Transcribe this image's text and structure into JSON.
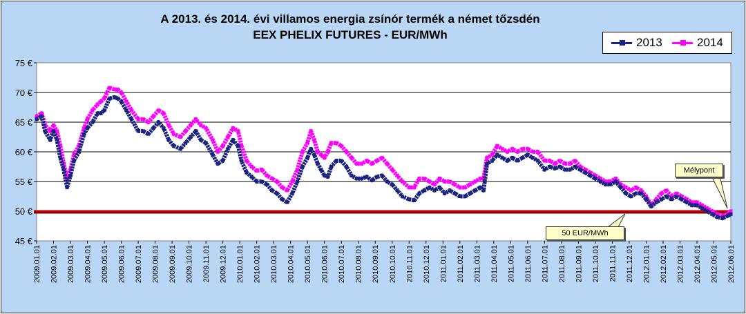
{
  "title_line1": "A 2013. és 2014. évi villamos energia zsínór termék a német tőzsdén",
  "title_line2": "EEX PHELIX FUTURES  - EUR/MWh",
  "colors": {
    "background": "#b9d7f5",
    "plot": "#ffffff",
    "s2013": "#1a237e",
    "s2014": "#ff00ff",
    "threshold": "#c00000"
  },
  "annotations": {
    "low_point": "Mélypont",
    "threshold": "50 EUR/MWh"
  },
  "chart_data": {
    "type": "line",
    "ylim": [
      45,
      75
    ],
    "yticks": [
      {
        "value": 45,
        "label": "45 €"
      },
      {
        "value": 50,
        "label": "50 €"
      },
      {
        "value": 55,
        "label": "55 €"
      },
      {
        "value": 60,
        "label": "60 €"
      },
      {
        "value": 65,
        "label": "65 €"
      },
      {
        "value": 70,
        "label": "70 €"
      },
      {
        "value": 75,
        "label": "75 €"
      }
    ],
    "x_labels": [
      "2009.01.01",
      "2009.02.01",
      "2009.03.01",
      "2009.04.01",
      "2009.05.01",
      "2009.06.01",
      "2009.07.01",
      "2009.08.01",
      "2009.09.01",
      "2009.10.01",
      "2009.11.01",
      "2009.12.01",
      "2010.01.01",
      "2010.02.01",
      "2010.03.01",
      "2010.04.01",
      "2010.05.01",
      "2010.06.01",
      "2010.07.01",
      "2010.08.01",
      "2010.09.01",
      "2010.10.01",
      "2010.11.01",
      "2010.12.01",
      "2011.01.01",
      "2011.02.01",
      "2011.03.01",
      "2011.04.01",
      "2011.05.01",
      "2011.06.01",
      "2011.07.01",
      "2011.08.01",
      "2011.09.01",
      "2011.10.01",
      "2011.11.01",
      "2011.12.01",
      "2012.01.01",
      "2012.02.01",
      "2012.03.01",
      "2012.04.01",
      "2012.05.01",
      "2012.06.01"
    ],
    "threshold": 50,
    "grid": true,
    "legend": "top-right",
    "series": [
      {
        "name": "2013",
        "color": "#1a237e",
        "points": [
          [
            0,
            65.5
          ],
          [
            0.3,
            66
          ],
          [
            0.5,
            63.5
          ],
          [
            0.8,
            62
          ],
          [
            1.0,
            63.5
          ],
          [
            1.2,
            62
          ],
          [
            1.4,
            59
          ],
          [
            1.6,
            57
          ],
          [
            1.8,
            54
          ],
          [
            2.0,
            56
          ],
          [
            2.2,
            58.5
          ],
          [
            2.5,
            60
          ],
          [
            2.8,
            63
          ],
          [
            3.0,
            64
          ],
          [
            3.3,
            65
          ],
          [
            3.6,
            66.5
          ],
          [
            3.8,
            66.5
          ],
          [
            4.0,
            67
          ],
          [
            4.3,
            69
          ],
          [
            4.6,
            69.2
          ],
          [
            4.8,
            69
          ],
          [
            5.0,
            68.5
          ],
          [
            5.3,
            67
          ],
          [
            5.6,
            65.5
          ],
          [
            6.0,
            63.5
          ],
          [
            6.3,
            63.5
          ],
          [
            6.6,
            63
          ],
          [
            6.9,
            64
          ],
          [
            7.2,
            65
          ],
          [
            7.5,
            64
          ],
          [
            7.8,
            62
          ],
          [
            8.1,
            61
          ],
          [
            8.5,
            60.5
          ],
          [
            8.8,
            61.5
          ],
          [
            9.1,
            62.5
          ],
          [
            9.4,
            63.5
          ],
          [
            9.7,
            62
          ],
          [
            10.0,
            61.5
          ],
          [
            10.4,
            59.5
          ],
          [
            10.7,
            58
          ],
          [
            11.0,
            58.5
          ],
          [
            11.3,
            60.5
          ],
          [
            11.6,
            62
          ],
          [
            11.9,
            61
          ],
          [
            12.1,
            58.5
          ],
          [
            12.4,
            56.5
          ],
          [
            12.7,
            55.8
          ],
          [
            13.0,
            55
          ],
          [
            13.3,
            55
          ],
          [
            13.6,
            54.5
          ],
          [
            13.9,
            53.5
          ],
          [
            14.2,
            53
          ],
          [
            14.5,
            52
          ],
          [
            14.8,
            51.5
          ],
          [
            15.1,
            53
          ],
          [
            15.4,
            55
          ],
          [
            15.7,
            57.5
          ],
          [
            16.0,
            59
          ],
          [
            16.2,
            60.5
          ],
          [
            16.4,
            59.5
          ],
          [
            16.6,
            58
          ],
          [
            16.8,
            57
          ],
          [
            17.0,
            56
          ],
          [
            17.2,
            55.8
          ],
          [
            17.4,
            57.5
          ],
          [
            17.7,
            58.5
          ],
          [
            18.0,
            58.5
          ],
          [
            18.3,
            57.5
          ],
          [
            18.6,
            56
          ],
          [
            18.9,
            55.5
          ],
          [
            19.2,
            55.5
          ],
          [
            19.5,
            55.8
          ],
          [
            19.8,
            55.2
          ],
          [
            20.1,
            55.8
          ],
          [
            20.4,
            56
          ],
          [
            20.7,
            55
          ],
          [
            21.0,
            54.5
          ],
          [
            21.3,
            53.5
          ],
          [
            21.6,
            52.5
          ],
          [
            22.0,
            52
          ],
          [
            22.3,
            51.8
          ],
          [
            22.6,
            53
          ],
          [
            22.9,
            53.5
          ],
          [
            23.2,
            54
          ],
          [
            23.5,
            53.5
          ],
          [
            23.8,
            54
          ],
          [
            24.1,
            53
          ],
          [
            24.4,
            53.5
          ],
          [
            24.7,
            53
          ],
          [
            25.0,
            52.5
          ],
          [
            25.3,
            52.5
          ],
          [
            25.6,
            53
          ],
          [
            25.9,
            53.5
          ],
          [
            26.2,
            54
          ],
          [
            26.4,
            53.5
          ],
          [
            26.6,
            58
          ],
          [
            26.9,
            58.5
          ],
          [
            27.2,
            59.5
          ],
          [
            27.5,
            59
          ],
          [
            27.8,
            58.5
          ],
          [
            28.1,
            59
          ],
          [
            28.4,
            58.5
          ],
          [
            28.7,
            59
          ],
          [
            29.0,
            59.5
          ],
          [
            29.3,
            59
          ],
          [
            29.6,
            58.5
          ],
          [
            30.0,
            57
          ],
          [
            30.3,
            57.5
          ],
          [
            30.6,
            57.2
          ],
          [
            30.9,
            57.5
          ],
          [
            31.2,
            57
          ],
          [
            31.5,
            57
          ],
          [
            31.8,
            57.5
          ],
          [
            32.1,
            57
          ],
          [
            32.4,
            56.5
          ],
          [
            32.7,
            56
          ],
          [
            33.0,
            55.5
          ],
          [
            33.3,
            55
          ],
          [
            33.6,
            54.5
          ],
          [
            33.9,
            54.5
          ],
          [
            34.2,
            55
          ],
          [
            34.5,
            54
          ],
          [
            34.8,
            53
          ],
          [
            35.1,
            52.5
          ],
          [
            35.4,
            53
          ],
          [
            35.7,
            53
          ],
          [
            36.0,
            52
          ],
          [
            36.3,
            50.8
          ],
          [
            36.6,
            51.5
          ],
          [
            36.9,
            52
          ],
          [
            37.2,
            52.5
          ],
          [
            37.5,
            52
          ],
          [
            37.8,
            52.5
          ],
          [
            38.1,
            52
          ],
          [
            38.4,
            51.5
          ],
          [
            38.7,
            51
          ],
          [
            39.0,
            51
          ],
          [
            39.3,
            50.5
          ],
          [
            39.6,
            50
          ],
          [
            39.9,
            49.5
          ],
          [
            40.2,
            49
          ],
          [
            40.5,
            48.8
          ],
          [
            40.8,
            49.2
          ],
          [
            41.0,
            49.5
          ]
        ]
      },
      {
        "name": "2014",
        "color": "#ff00ff",
        "points": [
          [
            0,
            66
          ],
          [
            0.3,
            66.5
          ],
          [
            0.5,
            64.5
          ],
          [
            0.8,
            63.5
          ],
          [
            1.0,
            64.5
          ],
          [
            1.2,
            63.5
          ],
          [
            1.4,
            61
          ],
          [
            1.6,
            58
          ],
          [
            1.8,
            55.5
          ],
          [
            2.0,
            57
          ],
          [
            2.2,
            59.5
          ],
          [
            2.5,
            61
          ],
          [
            2.8,
            64
          ],
          [
            3.0,
            65.5
          ],
          [
            3.3,
            67
          ],
          [
            3.6,
            68
          ],
          [
            3.8,
            68.5
          ],
          [
            4.0,
            69
          ],
          [
            4.3,
            70.8
          ],
          [
            4.6,
            70.5
          ],
          [
            4.8,
            70.5
          ],
          [
            5.0,
            70
          ],
          [
            5.3,
            68.5
          ],
          [
            5.6,
            67
          ],
          [
            6.0,
            65.5
          ],
          [
            6.3,
            65.5
          ],
          [
            6.6,
            65
          ],
          [
            6.9,
            66
          ],
          [
            7.2,
            67
          ],
          [
            7.5,
            66.5
          ],
          [
            7.8,
            64.5
          ],
          [
            8.1,
            63
          ],
          [
            8.5,
            62.5
          ],
          [
            8.8,
            63.5
          ],
          [
            9.1,
            64.5
          ],
          [
            9.4,
            65.5
          ],
          [
            9.7,
            64.5
          ],
          [
            10.0,
            64
          ],
          [
            10.4,
            62
          ],
          [
            10.7,
            60
          ],
          [
            11.0,
            61
          ],
          [
            11.3,
            62.5
          ],
          [
            11.6,
            64
          ],
          [
            11.9,
            63.5
          ],
          [
            12.1,
            61
          ],
          [
            12.4,
            58.5
          ],
          [
            12.7,
            57.5
          ],
          [
            13.0,
            56.8
          ],
          [
            13.3,
            57
          ],
          [
            13.6,
            56
          ],
          [
            13.9,
            55.5
          ],
          [
            14.2,
            55
          ],
          [
            14.5,
            54
          ],
          [
            14.8,
            53.5
          ],
          [
            15.1,
            55
          ],
          [
            15.4,
            57
          ],
          [
            15.7,
            60
          ],
          [
            16.0,
            61.5
          ],
          [
            16.2,
            63.5
          ],
          [
            16.4,
            62
          ],
          [
            16.6,
            60
          ],
          [
            16.8,
            59.5
          ],
          [
            17.0,
            59
          ],
          [
            17.2,
            60
          ],
          [
            17.4,
            61.5
          ],
          [
            17.7,
            61.5
          ],
          [
            18.0,
            61
          ],
          [
            18.3,
            60
          ],
          [
            18.6,
            59
          ],
          [
            18.9,
            58
          ],
          [
            19.2,
            58
          ],
          [
            19.5,
            58.5
          ],
          [
            19.8,
            58
          ],
          [
            20.1,
            58.5
          ],
          [
            20.4,
            59
          ],
          [
            20.7,
            58
          ],
          [
            21.0,
            57
          ],
          [
            21.3,
            56
          ],
          [
            21.6,
            55
          ],
          [
            22.0,
            54
          ],
          [
            22.3,
            54
          ],
          [
            22.6,
            55.5
          ],
          [
            22.9,
            55.5
          ],
          [
            23.2,
            55
          ],
          [
            23.5,
            54.5
          ],
          [
            23.8,
            55.5
          ],
          [
            24.1,
            55
          ],
          [
            24.4,
            55
          ],
          [
            24.7,
            54.5
          ],
          [
            25.0,
            54
          ],
          [
            25.3,
            54
          ],
          [
            25.6,
            54.5
          ],
          [
            25.9,
            55
          ],
          [
            26.2,
            55.5
          ],
          [
            26.4,
            55.5
          ],
          [
            26.6,
            59
          ],
          [
            26.9,
            59.5
          ],
          [
            27.2,
            61
          ],
          [
            27.5,
            60.5
          ],
          [
            27.8,
            60
          ],
          [
            28.1,
            60.5
          ],
          [
            28.4,
            60
          ],
          [
            28.7,
            60.5
          ],
          [
            29.0,
            60.5
          ],
          [
            29.3,
            60
          ],
          [
            29.6,
            60
          ],
          [
            30.0,
            58.5
          ],
          [
            30.3,
            58.5
          ],
          [
            30.6,
            58
          ],
          [
            30.9,
            58.5
          ],
          [
            31.2,
            58
          ],
          [
            31.5,
            58
          ],
          [
            31.8,
            58.5
          ],
          [
            32.1,
            57.5
          ],
          [
            32.4,
            57
          ],
          [
            32.7,
            56.5
          ],
          [
            33.0,
            56
          ],
          [
            33.3,
            55.5
          ],
          [
            33.6,
            55
          ],
          [
            33.9,
            55
          ],
          [
            34.2,
            55.5
          ],
          [
            34.5,
            54.5
          ],
          [
            34.8,
            54
          ],
          [
            35.1,
            53.5
          ],
          [
            35.4,
            54
          ],
          [
            35.7,
            53.5
          ],
          [
            36.0,
            52.5
          ],
          [
            36.3,
            51
          ],
          [
            36.6,
            52
          ],
          [
            36.9,
            53
          ],
          [
            37.2,
            53.5
          ],
          [
            37.5,
            52.5
          ],
          [
            37.8,
            53
          ],
          [
            38.1,
            52.5
          ],
          [
            38.4,
            52
          ],
          [
            38.7,
            51.5
          ],
          [
            39.0,
            51.5
          ],
          [
            39.3,
            51
          ],
          [
            39.6,
            50.5
          ],
          [
            39.9,
            50
          ],
          [
            40.2,
            49.5
          ],
          [
            40.5,
            49.2
          ],
          [
            40.8,
            49.5
          ],
          [
            41.0,
            50
          ]
        ]
      }
    ]
  }
}
